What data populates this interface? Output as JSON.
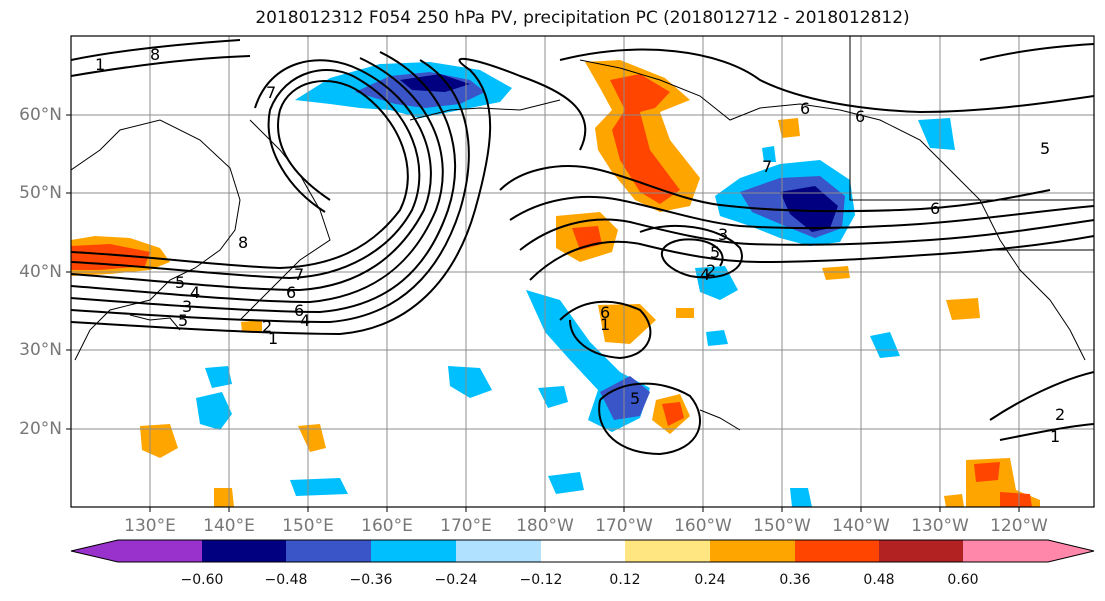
{
  "title": "2018012312 F054 250 hPa PV, precipitation PC (2018012712 - 2018012812)",
  "map": {
    "lat_labels": [
      "60°N",
      "50°N",
      "40°N",
      "30°N",
      "20°N"
    ],
    "lon_labels": [
      "130°E",
      "140°E",
      "150°E",
      "160°E",
      "170°E",
      "180°W",
      "170°W",
      "160°W",
      "150°W",
      "140°W",
      "130°W",
      "120°W"
    ],
    "contour_labels": [
      "1",
      "8",
      "7",
      "6",
      "5",
      "4",
      "3",
      "2",
      "1",
      "7",
      "6",
      "5",
      "4",
      "3",
      "2",
      "1",
      "6",
      "5",
      "4",
      "7",
      "6",
      "5",
      "6",
      "2",
      "1",
      "8",
      "6",
      "5"
    ],
    "colors": {
      "contour": "#000000",
      "grid": "#8c8c8c",
      "coast": "#000000"
    }
  },
  "colorbar": {
    "ticks": [
      "−0.60",
      "−0.48",
      "−0.36",
      "−0.24",
      "−0.12",
      "0.12",
      "0.24",
      "0.36",
      "0.48",
      "0.60"
    ],
    "colors": [
      "#9932cc",
      "#000080",
      "#3a55c8",
      "#00bfff",
      "#b0e2ff",
      "#ffffff",
      "#ffe680",
      "#ffa500",
      "#ff4500",
      "#b22222",
      "#ff88aa"
    ]
  }
}
